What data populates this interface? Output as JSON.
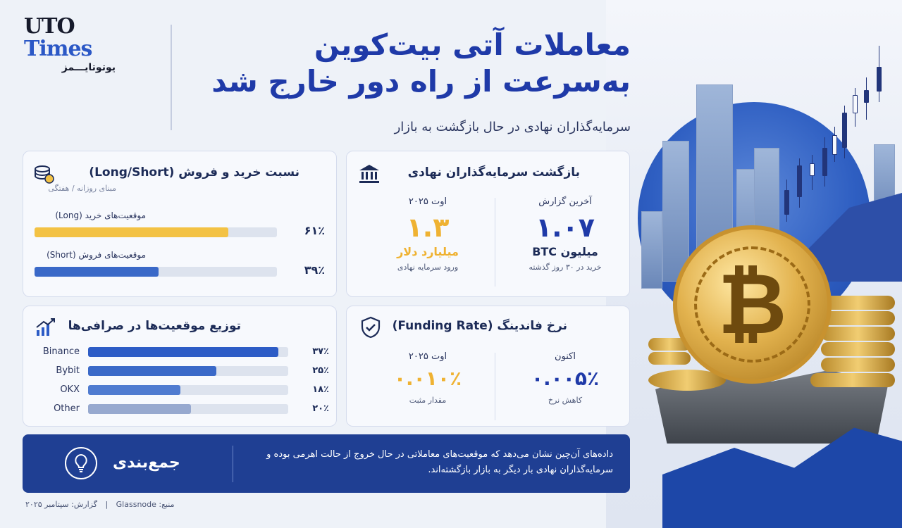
{
  "logo": {
    "line1": "UTO",
    "line2": "Times",
    "line3": "یوتوتایـــمز"
  },
  "title": {
    "line1": "معاملات آتی بیت‌کوین",
    "line2": "به‌سرعت از راه دور خارج شد"
  },
  "subtitle": "سرمایه‌گذاران نهادی در حال بازگشت به بازار",
  "long_short": {
    "title": "نسبت خرید و فروش (Long/Short)",
    "subtitle": "مبنای روزانه / هفتگی",
    "icon": "coins-stack-icon",
    "rows": [
      {
        "label": "موقعیت‌های خرید (Long)",
        "percent_text": "۶۱٪",
        "value": 0.61,
        "color": "#f3c244"
      },
      {
        "label": "موقعیت‌های فروش (Short)",
        "percent_text": "۳۹٪",
        "value": 0.39,
        "color": "#3a69c8"
      }
    ]
  },
  "institutional": {
    "title": "بازگشت سرمایه‌گذاران نهادی",
    "icon": "bank-icon",
    "right": {
      "heading": "آخرین گزارش",
      "value": "۱.۰۷",
      "unit": "میلیون BTC",
      "note": "خرید در ۳۰ روز گذشته",
      "color": "#1f3aa8"
    },
    "left": {
      "heading": "اوت ۲۰۲۵",
      "value": "۱.۳",
      "unit": "میلیارد دلار",
      "note": "ورود سرمایه نهادی",
      "color": "#efb232"
    }
  },
  "exchanges": {
    "title": "توزیع موقعیت‌ها در صرافی‌ها",
    "icon": "rising-chart-icon",
    "rows": [
      {
        "name": "Binance",
        "percent_text": "۳۷٪",
        "value": 0.37,
        "color": "#2d5cc6"
      },
      {
        "name": "Bybit",
        "percent_text": "۲۵٪",
        "value": 0.25,
        "color": "#3a69c8"
      },
      {
        "name": "OKX",
        "percent_text": "۱۸٪",
        "value": 0.18,
        "color": "#4f7bd0"
      },
      {
        "name": "Other",
        "percent_text": "۲۰٪",
        "value": 0.2,
        "color": "#97a9cf"
      }
    ]
  },
  "funding": {
    "title": "نرخ فاندینگ (Funding Rate)",
    "icon": "shield-check-icon",
    "right": {
      "heading": "اکنون",
      "value": "۰.۰۰۵٪",
      "note": "کاهش نرخ",
      "color": "#1f3aa8"
    },
    "left": {
      "heading": "اوت ۲۰۲۵",
      "value": "۰.۰۱۰٪",
      "note": "مقدار مثبت",
      "color": "#efb232"
    }
  },
  "summary": {
    "title": "جمع‌بندی",
    "icon": "lightbulb-icon",
    "text": "داده‌های آن‌چین نشان می‌دهد که موقعیت‌های معاملاتی در حال خروج از حالت اهرمی بوده و سرمایه‌گذاران نهادی بار دیگر به بازار بازگشته‌اند."
  },
  "footer": {
    "source": "منبع: Glassnode",
    "report": "گزارش: سپتامبر ۲۰۲۵"
  }
}
